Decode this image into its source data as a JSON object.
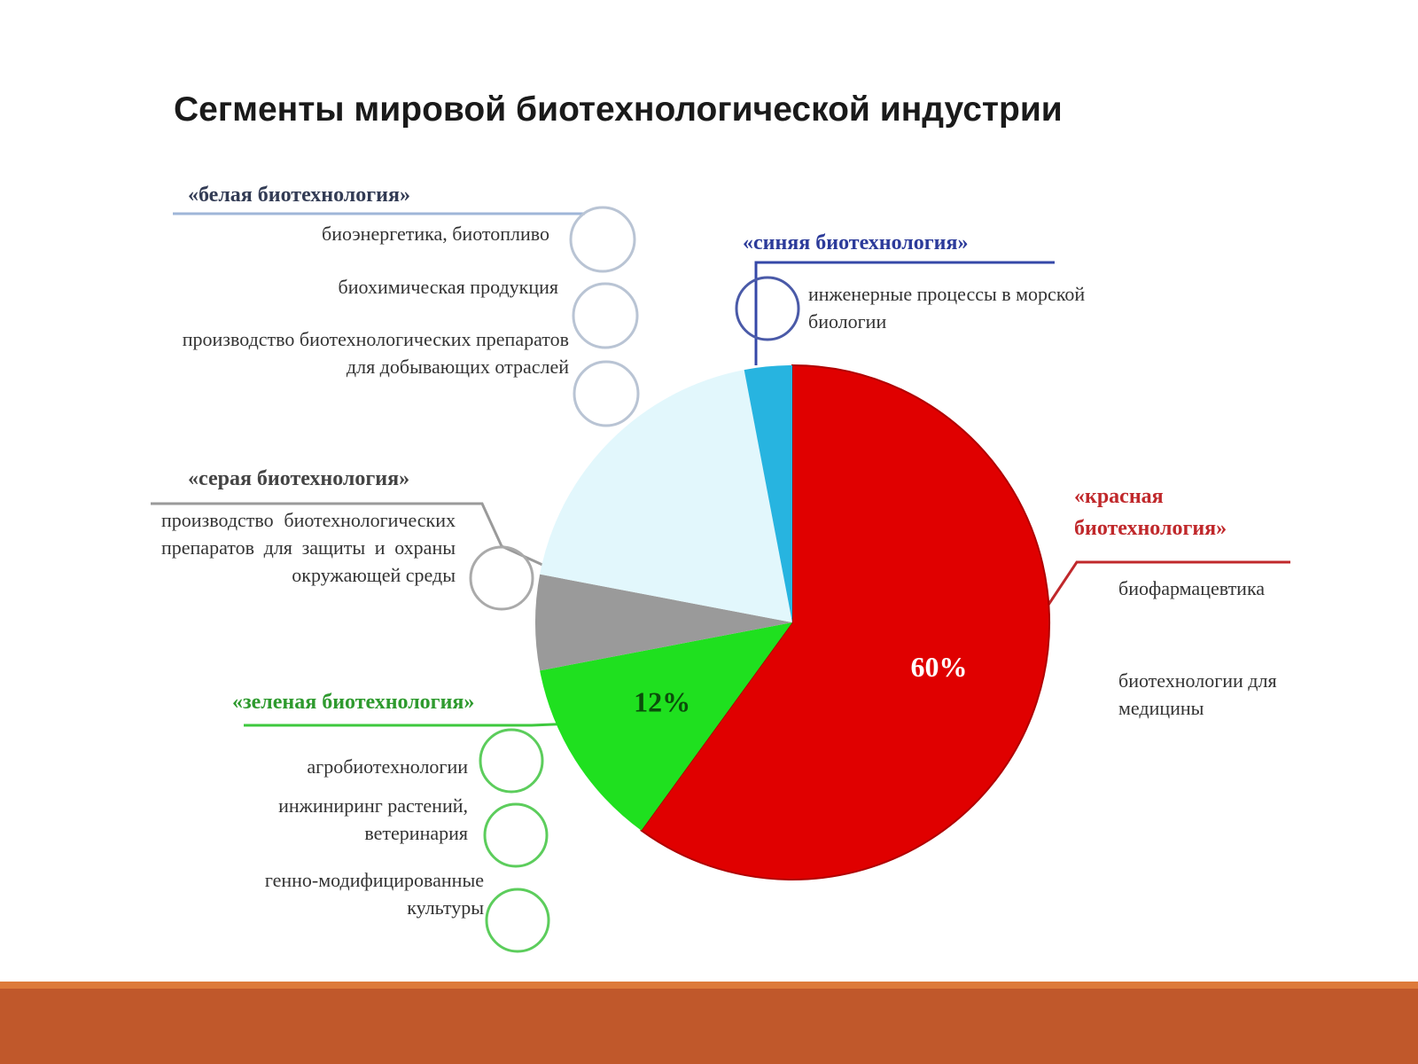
{
  "chart_data": {
    "type": "pie",
    "title": "Сегменты мировой биотехнологической индустрии",
    "categories": [
      "«красная биотехнология»",
      "«зеленая биотехнология»",
      "«серая биотехнология»",
      "«белая биотехнология»",
      "«синяя биотехнология»"
    ],
    "values": [
      60,
      12,
      6,
      19,
      3
    ],
    "value_labels": [
      "60%",
      "12%",
      null,
      null,
      null
    ],
    "colors": [
      "#e00000",
      "#1fe01f",
      "#9a9a9a",
      "#e2f7fc",
      "#27b4e0"
    ],
    "descriptions": [
      [
        "биофармацевтика",
        "биотехнологии для медицины"
      ],
      [
        "агробиотехнологии",
        "инжиниринг растений, ветеринария",
        "генно-модифицированные культуры"
      ],
      [
        "производство биотехнологических препаратов для защиты и охраны окружающей среды"
      ],
      [
        "биоэнергетика, биотопливо",
        "биохимическая продукция",
        "производство биотехнологических препаратов для добывающих отраслей"
      ],
      [
        "инженерные процессы в морской биологии"
      ]
    ]
  }
}
